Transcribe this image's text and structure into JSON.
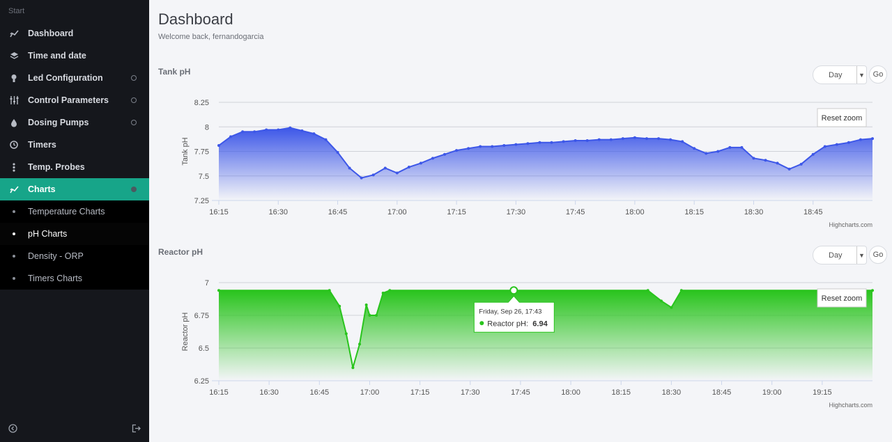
{
  "sidebar": {
    "brand": "Start",
    "items": [
      {
        "label": "Dashboard",
        "icon": "chart-line-icon"
      },
      {
        "label": "Time and date",
        "icon": "layers-icon"
      },
      {
        "label": "Led Configuration",
        "icon": "bulb-icon"
      },
      {
        "label": "Control Parameters",
        "icon": "sliders-icon"
      },
      {
        "label": "Dosing Pumps",
        "icon": "drop-icon"
      },
      {
        "label": "Timers",
        "icon": "clock-icon"
      },
      {
        "label": "Temp. Probes",
        "icon": "thermometer-icon"
      },
      {
        "label": "Charts",
        "icon": "chart-line-icon"
      }
    ],
    "subitems": [
      "Temperature Charts",
      "pH Charts",
      "Density - ORP",
      "Timers Charts"
    ],
    "footer": {
      "collapse": "collapse-icon",
      "logout": "logout-icon"
    }
  },
  "header": {
    "title": "Dashboard",
    "welcome": "Welcome back, fernandogarcia"
  },
  "colors": {
    "active": "#17a589",
    "tank_series": "#3d57e8",
    "reactor_series": "#29c41d"
  },
  "charts": [
    {
      "title": "Tank pH",
      "range": "Day",
      "go": "Go",
      "reset": "Reset zoom",
      "credits": "Highcharts.com"
    },
    {
      "title": "Reactor pH",
      "range": "Day",
      "go": "Go",
      "reset": "Reset zoom",
      "credits": "Highcharts.com",
      "tooltip": {
        "time": "Friday, Sep 26, 17:43",
        "series": "Reactor pH",
        "value": "6.94"
      }
    }
  ],
  "chart_data": [
    {
      "type": "area",
      "title": "",
      "xlabel": "",
      "ylabel": "Tank pH",
      "x_ticks": [
        "16:15",
        "16:30",
        "16:45",
        "17:00",
        "17:15",
        "17:30",
        "17:45",
        "18:00",
        "18:15",
        "18:30",
        "18:45"
      ],
      "y_ticks": [
        "7.25",
        "7.5",
        "7.75",
        "8",
        "8.25"
      ],
      "ylim": [
        7.25,
        8.25
      ],
      "xlim": [
        "16:15",
        "19:00"
      ],
      "grid": true,
      "series": [
        {
          "name": "Tank pH",
          "x": [
            "16:15",
            "16:18",
            "16:21",
            "16:24",
            "16:27",
            "16:30",
            "16:33",
            "16:36",
            "16:39",
            "16:42",
            "16:45",
            "16:48",
            "16:51",
            "16:54",
            "16:57",
            "17:00",
            "17:03",
            "17:06",
            "17:09",
            "17:12",
            "17:15",
            "17:18",
            "17:21",
            "17:24",
            "17:27",
            "17:30",
            "17:33",
            "17:36",
            "17:39",
            "17:42",
            "17:45",
            "17:48",
            "17:51",
            "17:54",
            "17:57",
            "18:00",
            "18:03",
            "18:06",
            "18:09",
            "18:12",
            "18:15",
            "18:18",
            "18:21",
            "18:24",
            "18:27",
            "18:30",
            "18:33",
            "18:36",
            "18:39",
            "18:42",
            "18:45",
            "18:48",
            "18:51",
            "18:54",
            "18:57",
            "19:00"
          ],
          "values": [
            7.81,
            7.9,
            7.95,
            7.95,
            7.97,
            7.97,
            7.99,
            7.96,
            7.93,
            7.87,
            7.74,
            7.58,
            7.48,
            7.51,
            7.58,
            7.53,
            7.59,
            7.63,
            7.68,
            7.72,
            7.76,
            7.78,
            7.8,
            7.8,
            7.81,
            7.82,
            7.83,
            7.84,
            7.84,
            7.85,
            7.86,
            7.86,
            7.87,
            7.87,
            7.88,
            7.89,
            7.88,
            7.88,
            7.87,
            7.85,
            7.78,
            7.73,
            7.75,
            7.79,
            7.79,
            7.68,
            7.66,
            7.63,
            7.57,
            7.62,
            7.72,
            7.8,
            7.82,
            7.84,
            7.87,
            7.88
          ]
        }
      ]
    },
    {
      "type": "area",
      "title": "",
      "xlabel": "",
      "ylabel": "Reactor pH",
      "x_ticks": [
        "16:15",
        "16:30",
        "16:45",
        "17:00",
        "17:15",
        "17:30",
        "17:45",
        "18:00",
        "18:15",
        "18:30",
        "18:45",
        "19:00",
        "19:15"
      ],
      "y_ticks": [
        "6.25",
        "6.5",
        "6.75",
        "7"
      ],
      "ylim": [
        6.25,
        7.0
      ],
      "xlim": [
        "16:15",
        "19:30"
      ],
      "grid": true,
      "series": [
        {
          "name": "Reactor pH",
          "x": [
            "16:15",
            "16:48",
            "16:51",
            "16:53",
            "16:55",
            "16:57",
            "16:59",
            "17:00",
            "17:02",
            "17:04",
            "17:06",
            "17:43",
            "18:23",
            "18:27",
            "18:30",
            "18:33",
            "19:30"
          ],
          "values": [
            6.94,
            6.94,
            6.82,
            6.61,
            6.35,
            6.53,
            6.83,
            6.75,
            6.75,
            6.92,
            6.94,
            6.94,
            6.94,
            6.86,
            6.81,
            6.94,
            6.94
          ]
        }
      ]
    }
  ]
}
